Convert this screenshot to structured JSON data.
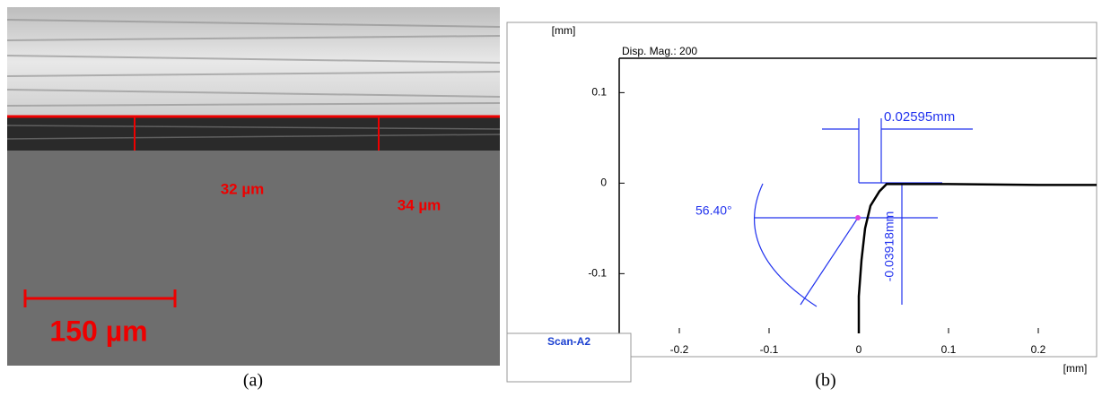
{
  "panel_a": {
    "labels": [
      "32 µm",
      "34 µm"
    ],
    "scale_bar": "150 µm",
    "caption": "(a)"
  },
  "chart_data": {
    "type": "line",
    "y_label": "[mm]",
    "x_label": "[mm]",
    "annotation": "Disp. Mag.: 200",
    "dimensions": [
      "0.02595mm",
      "56.40°",
      "-0.03918mm"
    ],
    "caption": "(b)",
    "x": [
      0,
      0,
      0.003,
      0.007,
      0.013,
      0.023,
      0.031,
      0.043,
      0.1,
      0.2,
      0.265
    ],
    "series": [
      {
        "name": "Scan-A2",
        "color": "#000000",
        "values": [
          -0.166,
          -0.125,
          -0.085,
          -0.05,
          -0.025,
          -0.009,
          -0.001,
          -0.001,
          -0.001,
          -0.002,
          -0.002
        ]
      }
    ],
    "xlim": [
      -0.267,
      0.265
    ],
    "ylim": [
      -0.166,
      0.138
    ],
    "xticks": [
      -0.2,
      -0.1,
      0,
      0.1,
      0.2
    ],
    "yticks": [
      -0.1,
      0,
      0.1
    ]
  }
}
